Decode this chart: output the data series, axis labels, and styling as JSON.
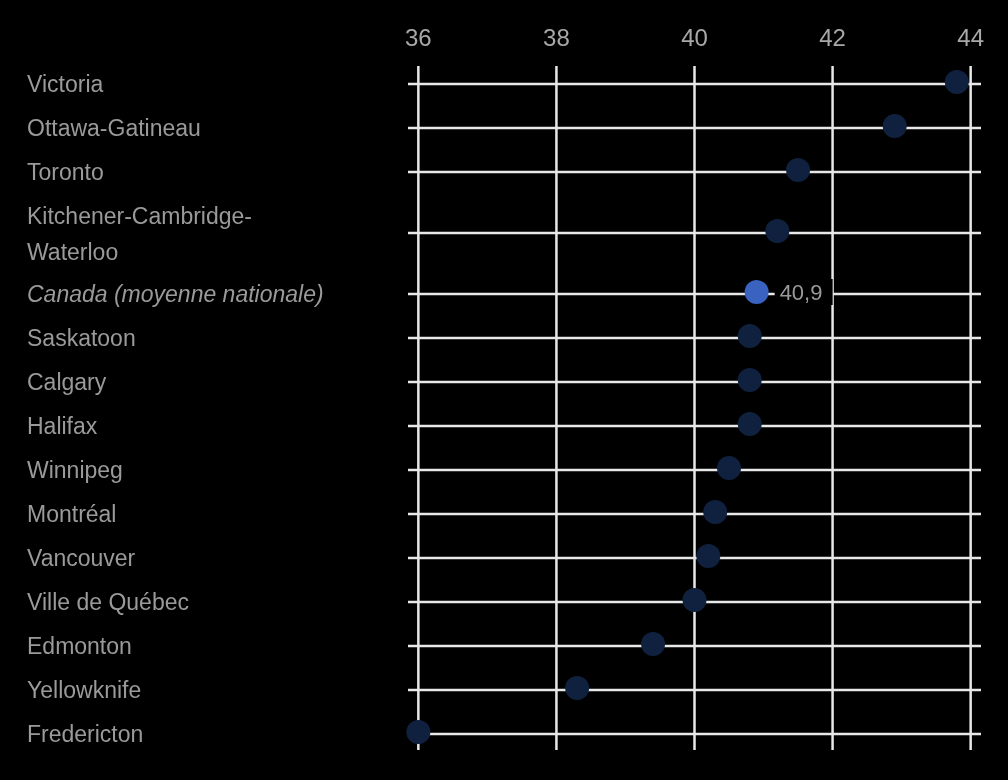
{
  "chart_data": {
    "type": "scatter",
    "orientation": "horizontal",
    "marker": "circle",
    "grid": true,
    "categories": [
      "Victoria",
      "Ottawa-Gatineau",
      "Toronto",
      "Kitchener-Cambridge-Waterloo",
      "Canada (moyenne nationale)",
      "Saskatoon",
      "Calgary",
      "Halifax",
      "Winnipeg",
      "Montréal",
      "Vancouver",
      "Ville de Québec",
      "Edmonton",
      "Yellowknife",
      "Fredericton"
    ],
    "values": [
      43.8,
      42.9,
      41.5,
      41.2,
      40.9,
      40.8,
      40.8,
      40.8,
      40.5,
      40.3,
      40.2,
      40.0,
      39.4,
      38.3,
      36.0
    ],
    "colors": [
      "#10213f",
      "#10213f",
      "#10213f",
      "#10213f",
      "#3a62c0",
      "#10213f",
      "#10213f",
      "#10213f",
      "#10213f",
      "#10213f",
      "#10213f",
      "#10213f",
      "#10213f",
      "#10213f",
      "#10213f"
    ],
    "value_labels": [
      null,
      null,
      null,
      null,
      "40,9",
      null,
      null,
      null,
      null,
      null,
      null,
      null,
      null,
      null,
      null
    ],
    "xlim": [
      35.85,
      44.15
    ],
    "xticks": [
      36,
      38,
      40,
      42,
      44
    ]
  }
}
